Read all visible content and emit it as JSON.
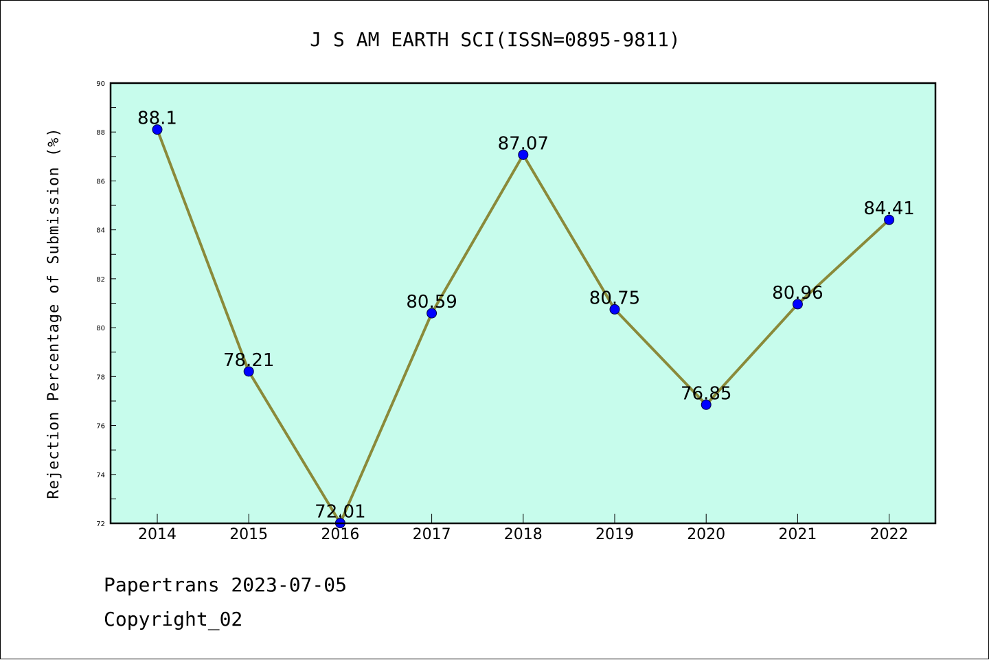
{
  "chart_data": {
    "type": "line",
    "title": "J S AM EARTH SCI(ISSN=0895-9811)",
    "xlabel": "",
    "ylabel": "Rejection Percentage of Submission (%)",
    "categories": [
      "2014",
      "2015",
      "2016",
      "2017",
      "2018",
      "2019",
      "2020",
      "2021",
      "2022"
    ],
    "series": [
      {
        "values": [
          88.1,
          78.21,
          72.01,
          80.59,
          87.07,
          80.75,
          76.85,
          80.96,
          84.41
        ],
        "labels": [
          "88.1",
          "78.21",
          "72.01",
          "80.59",
          "87.07",
          "80.75",
          "76.85",
          "80.96",
          "84.41"
        ]
      }
    ],
    "ylim": [
      72,
      90
    ],
    "yticks": [
      "72",
      "74",
      "76",
      "78",
      "80",
      "82",
      "84",
      "86",
      "88",
      "90"
    ],
    "grid": false,
    "colors": {
      "plot_background": "#c7fcec",
      "line": "#8a8a3a",
      "marker": "#0000ff"
    }
  },
  "footer": {
    "line1": "Papertrans 2023-07-05",
    "line2": "Copyright_02"
  }
}
